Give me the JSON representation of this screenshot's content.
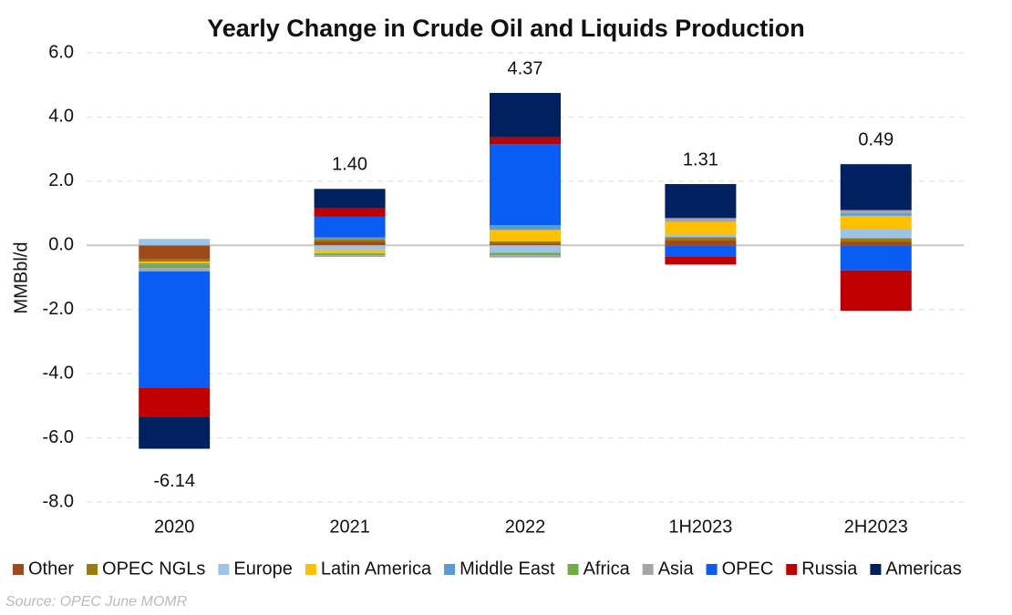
{
  "chart_data": {
    "type": "stacked_bar",
    "title": "Yearly Change in Crude Oil and Liquids Production",
    "y_label": "MMBbl/d",
    "source": "Source: OPEC June MOMR",
    "categories": [
      "2020",
      "2021",
      "2022",
      "1H2023",
      "2H2023"
    ],
    "series": [
      {
        "name": "Other",
        "color": "#9e4a1a",
        "values": [
          -0.43,
          0.12,
          0.05,
          0.17,
          0.12
        ]
      },
      {
        "name": "OPEC NGLs",
        "color": "#9c7a0e",
        "values": [
          -0.08,
          0.08,
          0.08,
          0.08,
          0.1
        ]
      },
      {
        "name": "Europe",
        "color": "#9dc3e6",
        "values": [
          0.2,
          -0.15,
          -0.23,
          0.1,
          0.3
        ]
      },
      {
        "name": "Latin America",
        "color": "#ffc000",
        "values": [
          -0.05,
          -0.1,
          0.35,
          0.38,
          0.4
        ]
      },
      {
        "name": "Middle East",
        "color": "#5b9bd5",
        "values": [
          -0.05,
          0.05,
          0.15,
          0,
          0.08
        ]
      },
      {
        "name": "Africa",
        "color": "#70ad47",
        "values": [
          -0.1,
          -0.06,
          -0.08,
          0,
          0
        ]
      },
      {
        "name": "Asia",
        "color": "#a5a5a5",
        "values": [
          -0.1,
          -0.05,
          -0.07,
          0.12,
          0.1
        ]
      },
      {
        "name": "OPEC",
        "color": "#0a5cf5",
        "values": [
          -3.62,
          0.64,
          2.52,
          -0.34,
          -0.78
        ]
      },
      {
        "name": "Russia",
        "color": "#c00000",
        "values": [
          -0.93,
          0.27,
          0.22,
          -0.26,
          -1.26
        ]
      },
      {
        "name": "Americas",
        "color": "#002060",
        "values": [
          -0.98,
          0.6,
          1.38,
          1.06,
          1.43
        ]
      }
    ],
    "totals": {
      "values": [
        -6.14,
        1.4,
        4.37,
        1.31,
        0.49
      ],
      "value_labels": [
        "-6.14",
        "1.40",
        "4.37",
        "1.31",
        "0.49"
      ]
    },
    "ylim": [
      -8,
      6
    ],
    "yticks": [
      {
        "value": -8,
        "label": "-8.0"
      },
      {
        "value": -6,
        "label": "-6.0"
      },
      {
        "value": -4,
        "label": "-4.0"
      },
      {
        "value": -2,
        "label": "-2.0"
      },
      {
        "value": 0,
        "label": "0.0"
      },
      {
        "value": 2,
        "label": "2.0"
      },
      {
        "value": 4,
        "label": "4.0"
      },
      {
        "value": 6,
        "label": "6.0"
      }
    ],
    "grid": true,
    "legend": "bottom"
  }
}
